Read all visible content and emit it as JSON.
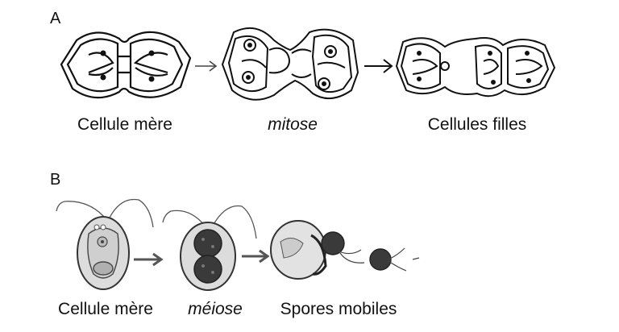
{
  "panel_a": {
    "letter": "A",
    "captions": {
      "mother": "Cellule mère",
      "process": "mitose",
      "daughters": "Cellules filles"
    }
  },
  "panel_b": {
    "letter": "B",
    "captions": {
      "mother": "Cellule mère",
      "process": "méiose",
      "spores": "Spores mobiles"
    }
  },
  "colors": {
    "ink": "#111111",
    "cell_fill_b": "#dcdcdc",
    "nucleus_b": "#444444"
  }
}
